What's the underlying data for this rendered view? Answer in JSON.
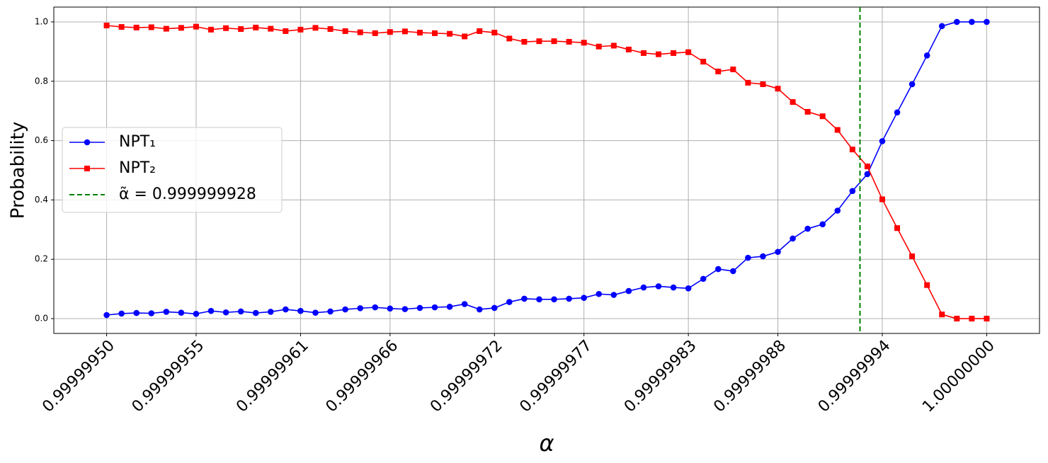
{
  "chart_data": {
    "type": "line",
    "xlabel": "α",
    "ylabel": "Probability",
    "x": [
      0.9999995,
      0.99999950847458,
      0.99999951694915,
      0.99999952542373,
      0.99999953389831,
      0.99999954237288,
      0.99999955084746,
      0.99999955932203,
      0.99999956779661,
      0.99999957627119,
      0.99999958474576,
      0.99999959322034,
      0.99999960169492,
      0.99999961016949,
      0.99999961864407,
      0.99999962711864,
      0.99999963559322,
      0.9999996440678,
      0.99999965254237,
      0.99999966101695,
      0.99999966949153,
      0.9999996779661,
      0.99999968644068,
      0.99999969491525,
      0.99999970338983,
      0.99999971186441,
      0.99999972033898,
      0.99999972881356,
      0.99999973728814,
      0.99999974576271,
      0.99999975423729,
      0.99999976271186,
      0.99999977118644,
      0.99999977966102,
      0.99999978813559,
      0.99999979661017,
      0.99999980508475,
      0.99999981355932,
      0.9999998220339,
      0.99999983050847,
      0.99999983898305,
      0.99999984745763,
      0.9999998559322,
      0.99999986440678,
      0.99999987288136,
      0.99999988135593,
      0.99999988983051,
      0.99999989830508,
      0.99999990677966,
      0.99999991525424,
      0.99999992372881,
      0.99999993220339,
      0.99999994067797,
      0.99999994915254,
      0.99999995762712,
      0.99999996610169,
      0.99999997457627,
      0.99999998305085,
      0.99999999152542,
      1.0
    ],
    "series": [
      {
        "name": "NPT₁",
        "color": "#0000ff",
        "marker": "circle",
        "values": [
          0.012,
          0.017,
          0.019,
          0.018,
          0.023,
          0.02,
          0.016,
          0.026,
          0.021,
          0.024,
          0.019,
          0.023,
          0.031,
          0.026,
          0.02,
          0.024,
          0.031,
          0.035,
          0.038,
          0.034,
          0.032,
          0.036,
          0.038,
          0.04,
          0.049,
          0.031,
          0.036,
          0.056,
          0.067,
          0.065,
          0.065,
          0.067,
          0.07,
          0.083,
          0.08,
          0.093,
          0.105,
          0.109,
          0.105,
          0.102,
          0.134,
          0.167,
          0.16,
          0.205,
          0.21,
          0.225,
          0.27,
          0.303,
          0.318,
          0.364,
          0.43,
          0.487,
          0.598,
          0.695,
          0.79,
          0.887,
          0.986,
          1.0,
          1.0,
          1.0
        ]
      },
      {
        "name": "NPT₂",
        "color": "#ff0000",
        "marker": "square",
        "values": [
          0.988,
          0.983,
          0.981,
          0.982,
          0.977,
          0.98,
          0.984,
          0.974,
          0.979,
          0.976,
          0.981,
          0.977,
          0.969,
          0.974,
          0.98,
          0.976,
          0.969,
          0.965,
          0.962,
          0.966,
          0.968,
          0.964,
          0.962,
          0.96,
          0.951,
          0.969,
          0.964,
          0.944,
          0.933,
          0.935,
          0.935,
          0.933,
          0.93,
          0.917,
          0.92,
          0.907,
          0.895,
          0.891,
          0.895,
          0.898,
          0.866,
          0.833,
          0.84,
          0.795,
          0.79,
          0.775,
          0.73,
          0.697,
          0.682,
          0.636,
          0.57,
          0.513,
          0.402,
          0.305,
          0.21,
          0.113,
          0.014,
          0.0,
          0.0,
          0.0
        ]
      }
    ],
    "vline": {
      "x": 0.999999928,
      "name": "α̃ = 0.999999928",
      "color": "#008000"
    },
    "xlim": [
      0.99999947,
      1.00000003
    ],
    "ylim": [
      -0.05,
      1.05
    ],
    "xticks": [
      {
        "value": 0.9999995,
        "label": "0.99999950"
      },
      {
        "value": 0.99999955084746,
        "label": "0.99999955"
      },
      {
        "value": 0.99999961016949,
        "label": "0.99999961"
      },
      {
        "value": 0.99999966101695,
        "label": "0.99999966"
      },
      {
        "value": 0.99999972033898,
        "label": "0.99999972"
      },
      {
        "value": 0.99999977118644,
        "label": "0.99999977"
      },
      {
        "value": 0.99999983050847,
        "label": "0.99999983"
      },
      {
        "value": 0.99999988135593,
        "label": "0.99999988"
      },
      {
        "value": 0.99999994067797,
        "label": "0.99999994"
      },
      {
        "value": 1.0,
        "label": "1.00000000"
      }
    ],
    "yticks": [
      {
        "value": 0,
        "label": "0.0"
      },
      {
        "value": 0.2,
        "label": "0.2"
      },
      {
        "value": 0.4,
        "label": "0.4"
      },
      {
        "value": 0.6,
        "label": "0.6"
      },
      {
        "value": 0.8,
        "label": "0.8"
      },
      {
        "value": 1.0,
        "label": "1.0"
      }
    ],
    "grid": true,
    "legend": "center left"
  }
}
